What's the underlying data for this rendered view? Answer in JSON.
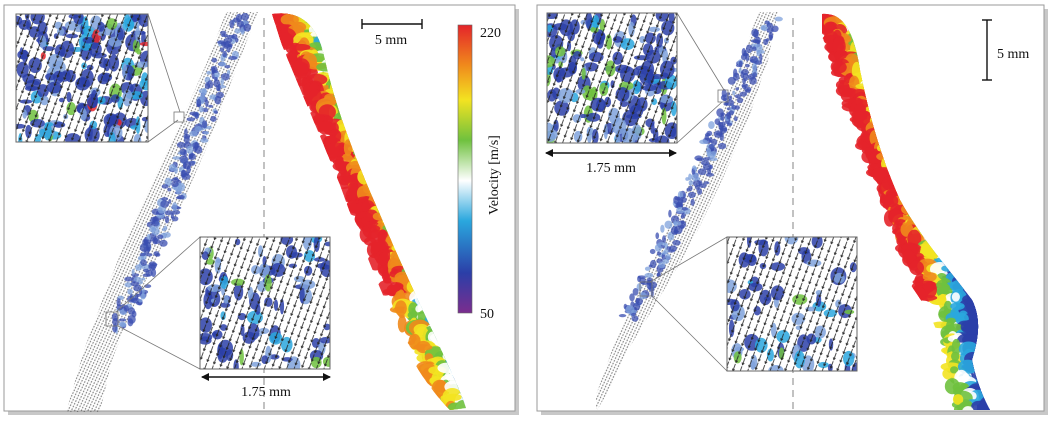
{
  "colorbar": {
    "max_label": "220",
    "min_label": "50",
    "axis_label": "Velocity [m/s]",
    "stops": [
      "#7b2d8e",
      "#2b3fa8",
      "#2aa7de",
      "#ffffff",
      "#6fc13e",
      "#f3e321",
      "#f08a1c",
      "#e4242a"
    ]
  },
  "left_panel": {
    "scalebar_label": "5 mm",
    "inset_bottom_scale_label": "1.75 mm"
  },
  "right_panel": {
    "scalebar_label": "5 mm",
    "inset_top_scale_label": "1.75 mm"
  },
  "colors": {
    "frame": "#9a9a9a",
    "shadow": "#c8c8c8",
    "dash": "#9a9a9a"
  }
}
